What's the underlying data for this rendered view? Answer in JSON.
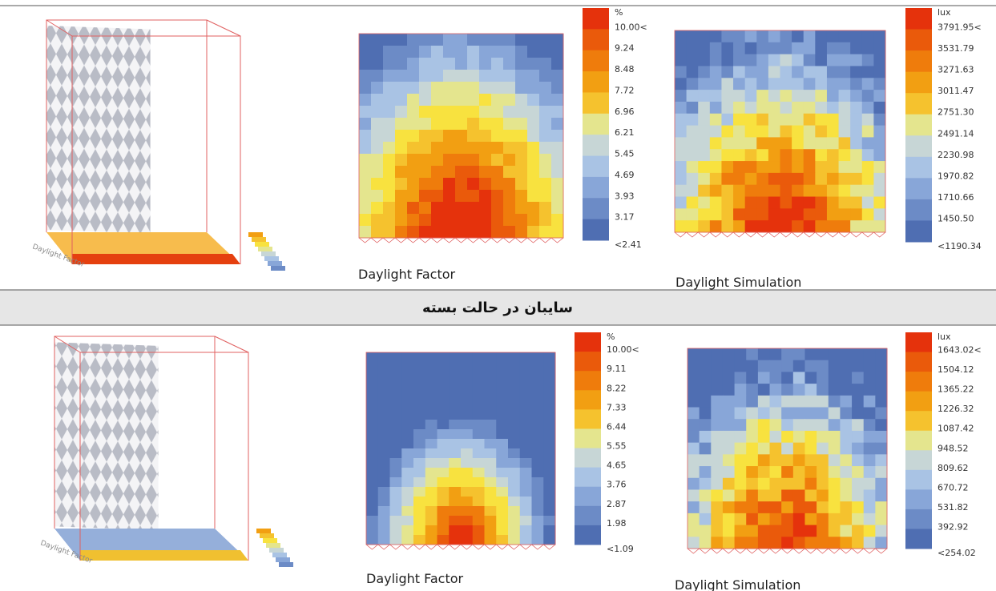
{
  "divider_title": "سایبان در حالت بسته",
  "rows": [
    {
      "model_label": "Daylight Factor",
      "panels": [
        {
          "caption": "Daylight Factor",
          "legend": {
            "unit": "%",
            "labels": [
              "10.00<",
              "9.24",
              "8.48",
              "7.72",
              "6.96",
              "6.21",
              "5.45",
              "4.69",
              "3.93",
              "3.17",
              "<2.41"
            ]
          }
        },
        {
          "caption": "Daylight Simulation",
          "legend": {
            "unit": "lux",
            "labels": [
              "3791.95<",
              "3531.79",
              "3271.63",
              "3011.47",
              "2751.30",
              "2491.14",
              "2230.98",
              "1970.82",
              "1710.66",
              "1450.50",
              "<1190.34"
            ]
          }
        }
      ]
    },
    {
      "model_label": "Daylight Factor",
      "panels": [
        {
          "caption": "Daylight Factor",
          "legend": {
            "unit": "%",
            "labels": [
              "10.00<",
              "9.11",
              "8.22",
              "7.33",
              "6.44",
              "5.55",
              "4.65",
              "3.76",
              "2.87",
              "1.98",
              "<1.09"
            ]
          }
        },
        {
          "caption": "Daylight Simulation",
          "legend": {
            "unit": "lux",
            "labels": [
              "1643.02<",
              "1504.12",
              "1365.22",
              "1226.32",
              "1087.42",
              "948.52",
              "809.62",
              "670.72",
              "531.82",
              "392.92",
              "<254.02"
            ]
          }
        }
      ]
    }
  ]
}
